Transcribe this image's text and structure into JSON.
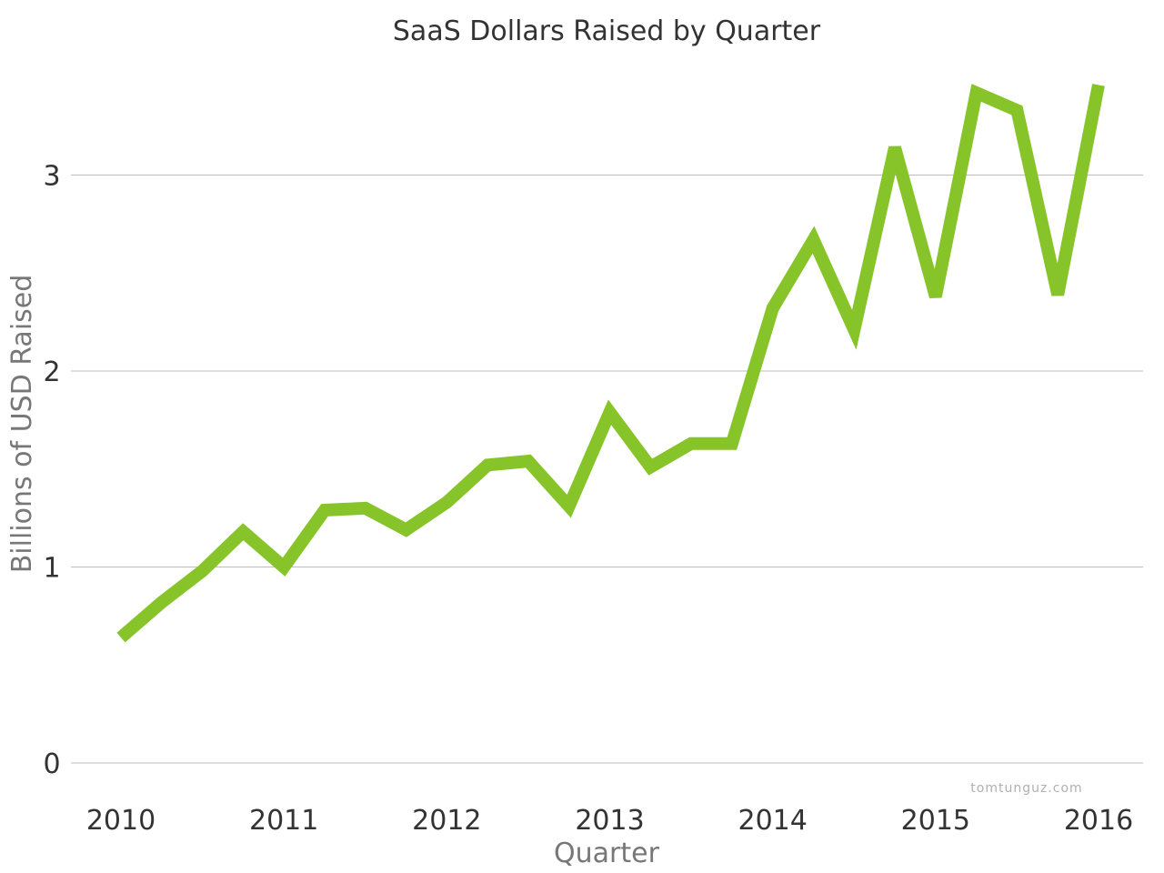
{
  "chart_data": {
    "type": "line",
    "title": "SaaS Dollars Raised by Quarter",
    "xlabel": "Quarter",
    "ylabel": "Billions of USD Raised",
    "x_tick_labels": [
      "2010",
      "2011",
      "2012",
      "2013",
      "2014",
      "2015",
      "2016"
    ],
    "y_ticks": [
      0,
      1,
      2,
      3
    ],
    "xlim": [
      2010,
      2016
    ],
    "ylim": [
      0,
      3.5
    ],
    "grid": "horizontal",
    "color": "#86c42a",
    "x": [
      2010.0,
      2010.25,
      2010.5,
      2010.75,
      2011.0,
      2011.25,
      2011.5,
      2011.75,
      2012.0,
      2012.25,
      2012.5,
      2012.75,
      2013.0,
      2013.25,
      2013.5,
      2013.75,
      2014.0,
      2014.25,
      2014.5,
      2014.75,
      2015.0,
      2015.25,
      2015.5,
      2015.75,
      2016.0
    ],
    "values": [
      0.64,
      0.82,
      0.98,
      1.18,
      1.0,
      1.29,
      1.3,
      1.19,
      1.33,
      1.52,
      1.54,
      1.31,
      1.79,
      1.51,
      1.63,
      1.63,
      2.32,
      2.67,
      2.21,
      3.14,
      2.38,
      3.42,
      3.33,
      2.39,
      3.46
    ],
    "source_credit": "tomtunguz.com"
  }
}
